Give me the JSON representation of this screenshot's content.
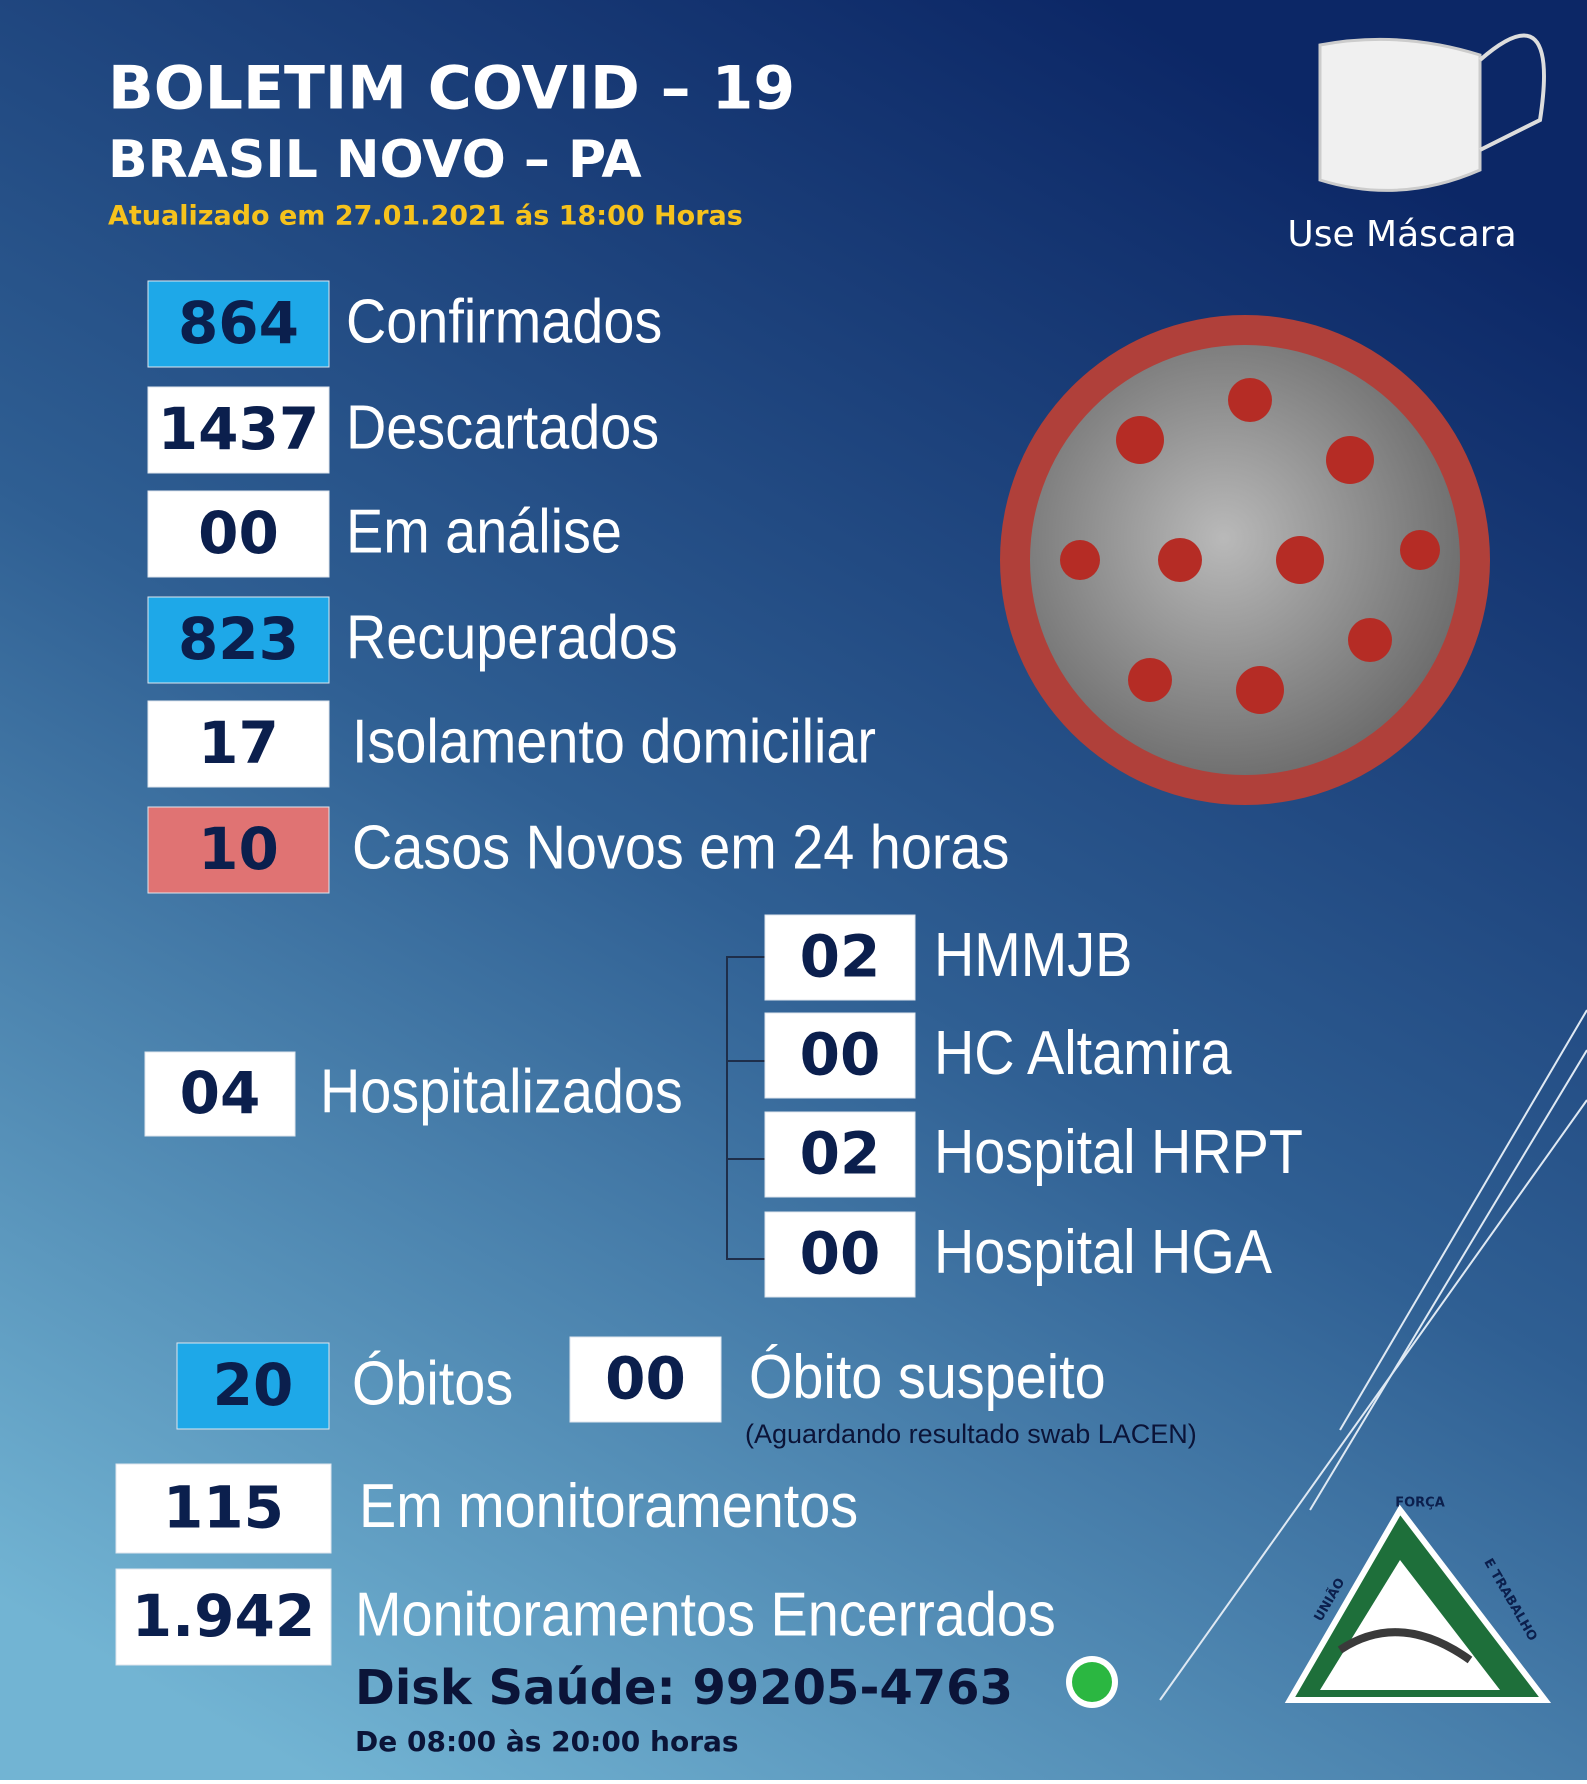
{
  "header": {
    "title": "BOLETIM COVID – 19",
    "location": "BRASIL NOVO – PA",
    "updated": "Atualizado em 27.01.2021 ás 18:00 Horas"
  },
  "mask_label": "Use Máscara",
  "stats": [
    {
      "value": "864",
      "label": "Confirmados"
    },
    {
      "value": "1437",
      "label": "Descartados"
    },
    {
      "value": "00",
      "label": "Em análise"
    },
    {
      "value": "823",
      "label": "Recuperados"
    },
    {
      "value": "17",
      "label": "Isolamento domiciliar"
    },
    {
      "value": "10",
      "label": "Casos Novos em 24 horas"
    }
  ],
  "hospitalized": {
    "value": "04",
    "label": "Hospitalizados",
    "hospitals": [
      {
        "value": "02",
        "label": "HMMJB"
      },
      {
        "value": "00",
        "label": "HC Altamira"
      },
      {
        "value": "02",
        "label": "Hospital HRPT"
      },
      {
        "value": "00",
        "label": "Hospital HGA"
      }
    ]
  },
  "deaths": {
    "value": "20",
    "label": "Óbitos"
  },
  "suspected_death": {
    "value": "00",
    "label": "Óbito suspeito",
    "note": "(Aguardando resultado swab LACEN)"
  },
  "monitoring": [
    {
      "value": "115",
      "label": "Em monitoramentos"
    },
    {
      "value": "1.942",
      "label": "Monitoramentos Encerrados"
    }
  ],
  "contact": {
    "phone": "Disk Saúde: 99205-4763",
    "hours": "De 08:00 às 20:00 horas"
  },
  "logo": {
    "top": "FORÇA",
    "left": "UNIÃO",
    "right": "E TRABALHO"
  }
}
